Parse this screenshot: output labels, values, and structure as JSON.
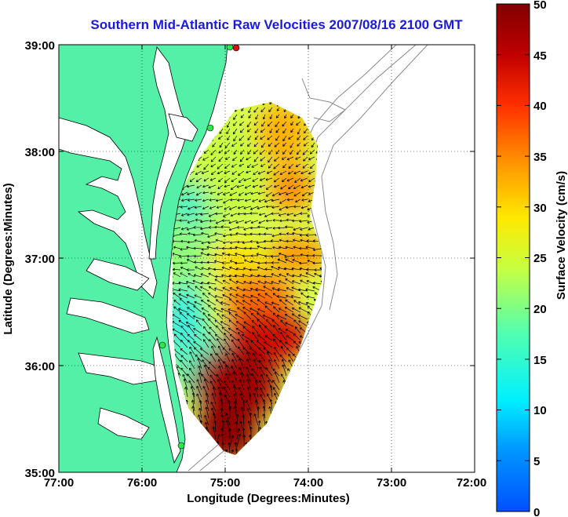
{
  "title": "Southern Mid-Atlantic Raw Velocities 2007/08/16 2100 GMT",
  "xlabel": "Longitude (Degrees:Minutes)",
  "ylabel": "Latitude (Degrees:Minutes)",
  "xticks": [
    "77:00",
    "76:00",
    "75:00",
    "74:00",
    "73:00",
    "72:00"
  ],
  "yticks": [
    "39:00",
    "38:00",
    "37:00",
    "36:00",
    "35:00"
  ],
  "colorbar": {
    "label": "Surface Velocity (cm/s)",
    "ticks": [
      "0",
      "5",
      "10",
      "15",
      "20",
      "25",
      "30",
      "35",
      "40",
      "45",
      "50"
    ],
    "range": [
      0,
      50
    ]
  },
  "colors": {
    "land": "#55f0a8",
    "coastline": "#000000",
    "bathymetry": "#8a8a8a",
    "title": "#1a1adc",
    "station_green": "#2ee84a",
    "station_red": "#e01010"
  }
}
